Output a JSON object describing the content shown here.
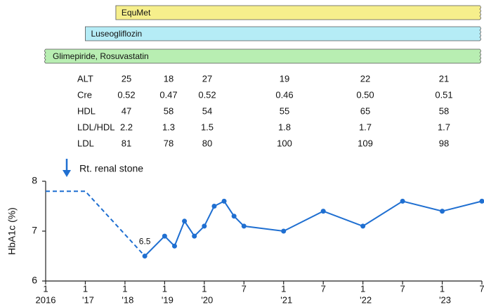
{
  "chart_data": {
    "type": "line",
    "drugs": [
      {
        "name": "EquMet",
        "color": "#f6ef8c",
        "start": 1.77
      },
      {
        "name": "Luseogliflozin",
        "color": "#b5ecf6",
        "start": 1.0
      },
      {
        "name": "Glimepiride, Rosuvastatin",
        "color": "#b8eeb2",
        "start": 0
      }
    ],
    "lab_table": {
      "rows": [
        {
          "label": "ALT",
          "values": [
            "25",
            "18",
            "27",
            "19",
            "22",
            "21"
          ]
        },
        {
          "label": "Cre",
          "values": [
            "0.52",
            "0.47",
            "0.52",
            "0.46",
            "0.50",
            "0.51"
          ]
        },
        {
          "label": "HDL",
          "values": [
            "47",
            "58",
            "54",
            "55",
            "65",
            "58"
          ]
        },
        {
          "label": "LDL/HDL",
          "values": [
            "2.2",
            "1.3",
            "1.5",
            "1.8",
            "1.7",
            "1.7"
          ]
        },
        {
          "label": "LDL",
          "values": [
            "81",
            "78",
            "80",
            "100",
            "109",
            "98"
          ]
        }
      ]
    },
    "annotation": "Rt. renal stone",
    "ylabel": "HbA1c (%)",
    "ylim": [
      6,
      8
    ],
    "yticks": [
      6,
      7,
      8
    ],
    "xlim": [
      0,
      11
    ],
    "xticks": [
      {
        "value": 0,
        "label": "1"
      },
      {
        "value": 1,
        "label": "1"
      },
      {
        "value": 2,
        "label": "1"
      },
      {
        "value": 3,
        "label": "1"
      },
      {
        "value": 4,
        "label": "1"
      },
      {
        "value": 5,
        "label": "7"
      },
      {
        "value": 6,
        "label": "1"
      },
      {
        "value": 7,
        "label": "7"
      },
      {
        "value": 8,
        "label": "1"
      },
      {
        "value": 9,
        "label": "7"
      },
      {
        "value": 10,
        "label": "1"
      },
      {
        "value": 11,
        "label": "7"
      }
    ],
    "year_labels": [
      {
        "value": 0,
        "label": "2016"
      },
      {
        "value": 1,
        "label": "'17"
      },
      {
        "value": 2,
        "label": "'18"
      },
      {
        "value": 3,
        "label": "'19"
      },
      {
        "value": 4,
        "label": "'20"
      },
      {
        "value": 6,
        "label": "'21"
      },
      {
        "value": 8,
        "label": "'22"
      },
      {
        "value": 10,
        "label": "'23"
      }
    ],
    "series": [
      {
        "color": "#1f6fd1",
        "dashed": true,
        "x": [
          0,
          1,
          2.5
        ],
        "values": [
          7.8,
          7.8,
          6.5
        ]
      },
      {
        "color": "#1f6fd1",
        "dashed": false,
        "x": [
          2.5,
          3,
          3.25,
          3.5,
          3.75,
          4,
          4.25,
          4.5,
          4.75,
          5,
          6,
          7,
          8,
          9,
          10,
          11
        ],
        "values": [
          6.5,
          6.9,
          6.7,
          7.2,
          6.9,
          7.1,
          7.5,
          7.6,
          7.3,
          7.1,
          7.0,
          7.4,
          7.1,
          7.6,
          7.4,
          7.6
        ],
        "value_labels": [
          "6.5",
          null,
          null,
          null,
          null,
          null,
          null,
          null,
          null,
          null,
          null,
          null,
          null,
          null,
          null,
          null
        ]
      }
    ]
  }
}
